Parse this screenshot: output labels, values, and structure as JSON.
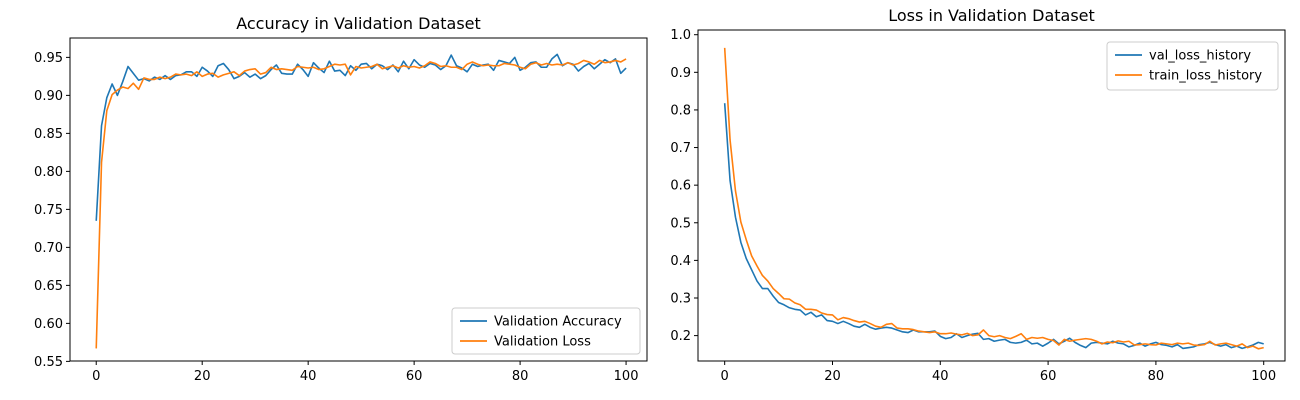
{
  "chart_data": [
    {
      "type": "line",
      "title": "Accuracy in Validation Dataset",
      "xlabel": "",
      "ylabel": "",
      "xlim": [
        -4.95,
        103.95
      ],
      "ylim": [
        0.5505,
        0.9755
      ],
      "xticks": [
        0,
        20,
        40,
        60,
        80,
        100
      ],
      "yticks": [
        0.55,
        0.6,
        0.65,
        0.7,
        0.75,
        0.8,
        0.85,
        0.9,
        0.95
      ],
      "xtick_labels": [
        "0",
        "20",
        "40",
        "60",
        "80",
        "100"
      ],
      "ytick_labels": [
        "0.55",
        "0.60",
        "0.65",
        "0.70",
        "0.75",
        "0.80",
        "0.85",
        "0.90",
        "0.95"
      ],
      "grid": false,
      "legend_position": "bottom-right",
      "series": [
        {
          "name": "Validation Accuracy",
          "color": "#1f77b4",
          "values": [
            0.735,
            0.86,
            0.897,
            0.915,
            0.9,
            0.918,
            0.938,
            0.929,
            0.92,
            0.922,
            0.919,
            0.924,
            0.921,
            0.926,
            0.921,
            0.926,
            0.927,
            0.931,
            0.931,
            0.925,
            0.937,
            0.932,
            0.925,
            0.939,
            0.942,
            0.934,
            0.922,
            0.925,
            0.93,
            0.924,
            0.928,
            0.922,
            0.926,
            0.934,
            0.94,
            0.929,
            0.928,
            0.928,
            0.941,
            0.934,
            0.925,
            0.943,
            0.936,
            0.93,
            0.945,
            0.932,
            0.933,
            0.926,
            0.939,
            0.933,
            0.941,
            0.942,
            0.935,
            0.941,
            0.939,
            0.934,
            0.94,
            0.931,
            0.945,
            0.935,
            0.947,
            0.94,
            0.937,
            0.942,
            0.94,
            0.934,
            0.939,
            0.953,
            0.939,
            0.936,
            0.931,
            0.941,
            0.938,
            0.94,
            0.941,
            0.933,
            0.946,
            0.944,
            0.942,
            0.95,
            0.933,
            0.937,
            0.943,
            0.944,
            0.937,
            0.937,
            0.948,
            0.954,
            0.939,
            0.943,
            0.941,
            0.932,
            0.938,
            0.942,
            0.935,
            0.941,
            0.947,
            0.943,
            0.948,
            0.929,
            0.936
          ]
        },
        {
          "name": "Validation Loss",
          "color": "#ff7f0e",
          "values": [
            0.567,
            0.812,
            0.88,
            0.901,
            0.907,
            0.911,
            0.909,
            0.916,
            0.908,
            0.923,
            0.921,
            0.921,
            0.924,
            0.922,
            0.924,
            0.928,
            0.927,
            0.928,
            0.926,
            0.931,
            0.925,
            0.928,
            0.929,
            0.924,
            0.927,
            0.929,
            0.931,
            0.926,
            0.932,
            0.934,
            0.935,
            0.928,
            0.93,
            0.937,
            0.934,
            0.935,
            0.934,
            0.933,
            0.938,
            0.937,
            0.936,
            0.937,
            0.934,
            0.935,
            0.938,
            0.941,
            0.94,
            0.941,
            0.927,
            0.938,
            0.936,
            0.937,
            0.938,
            0.941,
            0.935,
            0.937,
            0.939,
            0.936,
            0.939,
            0.937,
            0.938,
            0.936,
            0.939,
            0.944,
            0.942,
            0.938,
            0.939,
            0.937,
            0.937,
            0.934,
            0.941,
            0.944,
            0.941,
            0.939,
            0.94,
            0.939,
            0.939,
            0.942,
            0.941,
            0.94,
            0.937,
            0.935,
            0.941,
            0.943,
            0.94,
            0.942,
            0.94,
            0.941,
            0.94,
            0.943,
            0.94,
            0.942,
            0.946,
            0.944,
            0.941,
            0.946,
            0.943,
            0.944,
            0.946,
            0.944,
            0.948
          ]
        }
      ]
    },
    {
      "type": "line",
      "title": "Loss in Validation Dataset",
      "xlabel": "",
      "ylabel": "",
      "xlim": [
        -4.95,
        103.95
      ],
      "ylim": [
        0.1325,
        1.0125
      ],
      "xticks": [
        0,
        20,
        40,
        60,
        80,
        100
      ],
      "yticks": [
        0.2,
        0.3,
        0.4,
        0.5,
        0.6,
        0.7,
        0.8,
        0.9,
        1.0
      ],
      "xtick_labels": [
        "0",
        "20",
        "40",
        "60",
        "80",
        "100"
      ],
      "ytick_labels": [
        "0.2",
        "0.3",
        "0.4",
        "0.5",
        "0.6",
        "0.7",
        "0.8",
        "0.9",
        "1.0"
      ],
      "grid": false,
      "legend_position": "top-right",
      "series": [
        {
          "name": "val_loss_history",
          "color": "#1f77b4",
          "values": [
            0.818,
            0.612,
            0.515,
            0.448,
            0.405,
            0.375,
            0.345,
            0.325,
            0.325,
            0.305,
            0.288,
            0.282,
            0.274,
            0.27,
            0.268,
            0.255,
            0.262,
            0.25,
            0.255,
            0.24,
            0.238,
            0.232,
            0.238,
            0.232,
            0.225,
            0.222,
            0.23,
            0.222,
            0.217,
            0.22,
            0.222,
            0.22,
            0.215,
            0.21,
            0.208,
            0.215,
            0.21,
            0.21,
            0.21,
            0.212,
            0.198,
            0.192,
            0.195,
            0.205,
            0.195,
            0.2,
            0.204,
            0.206,
            0.19,
            0.192,
            0.185,
            0.188,
            0.19,
            0.182,
            0.18,
            0.182,
            0.188,
            0.178,
            0.18,
            0.172,
            0.18,
            0.19,
            0.178,
            0.185,
            0.193,
            0.182,
            0.174,
            0.168,
            0.18,
            0.182,
            0.18,
            0.178,
            0.185,
            0.18,
            0.178,
            0.17,
            0.174,
            0.18,
            0.172,
            0.178,
            0.182,
            0.176,
            0.174,
            0.17,
            0.176,
            0.166,
            0.168,
            0.17,
            0.176,
            0.178,
            0.182,
            0.176,
            0.172,
            0.176,
            0.168,
            0.172,
            0.166,
            0.17,
            0.175,
            0.182,
            0.178
          ]
        },
        {
          "name": "train_loss_history",
          "color": "#ff7f0e",
          "values": [
            0.965,
            0.72,
            0.585,
            0.502,
            0.455,
            0.412,
            0.385,
            0.36,
            0.345,
            0.325,
            0.312,
            0.298,
            0.297,
            0.287,
            0.282,
            0.27,
            0.27,
            0.268,
            0.26,
            0.256,
            0.255,
            0.242,
            0.248,
            0.245,
            0.24,
            0.236,
            0.238,
            0.232,
            0.225,
            0.222,
            0.23,
            0.232,
            0.22,
            0.218,
            0.218,
            0.216,
            0.212,
            0.21,
            0.208,
            0.21,
            0.205,
            0.205,
            0.207,
            0.204,
            0.202,
            0.206,
            0.2,
            0.202,
            0.215,
            0.2,
            0.197,
            0.2,
            0.195,
            0.192,
            0.198,
            0.205,
            0.19,
            0.195,
            0.193,
            0.195,
            0.19,
            0.187,
            0.175,
            0.19,
            0.185,
            0.188,
            0.19,
            0.192,
            0.19,
            0.185,
            0.178,
            0.183,
            0.181,
            0.186,
            0.183,
            0.185,
            0.175,
            0.176,
            0.178,
            0.176,
            0.175,
            0.18,
            0.178,
            0.176,
            0.18,
            0.178,
            0.18,
            0.175,
            0.174,
            0.176,
            0.185,
            0.175,
            0.178,
            0.18,
            0.176,
            0.172,
            0.178,
            0.168,
            0.172,
            0.165,
            0.168
          ]
        }
      ]
    }
  ]
}
